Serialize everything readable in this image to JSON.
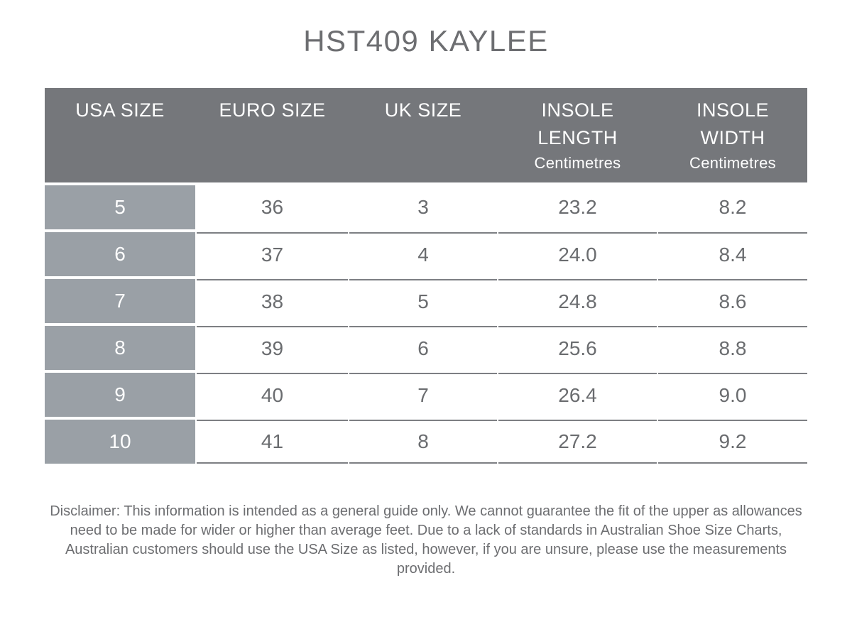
{
  "chart_data": {
    "type": "table",
    "title": "HST409 KAYLEE",
    "columns": [
      {
        "label": "USA SIZE",
        "sublabel": ""
      },
      {
        "label": "EURO SIZE",
        "sublabel": ""
      },
      {
        "label": "UK SIZE",
        "sublabel": ""
      },
      {
        "label": "INSOLE LENGTH",
        "sublabel": "Centimetres"
      },
      {
        "label": "INSOLE WIDTH",
        "sublabel": "Centimetres"
      }
    ],
    "rows": [
      [
        "5",
        "36",
        "3",
        "23.2",
        "8.2"
      ],
      [
        "6",
        "37",
        "4",
        "24.0",
        "8.4"
      ],
      [
        "7",
        "38",
        "5",
        "24.8",
        "8.6"
      ],
      [
        "8",
        "39",
        "6",
        "25.6",
        "8.8"
      ],
      [
        "9",
        "40",
        "7",
        "26.4",
        "9.0"
      ],
      [
        "10",
        "41",
        "8",
        "27.2",
        "9.2"
      ]
    ],
    "layout": {
      "first_column_highlighted": true,
      "grid": "horizontal-lines-only",
      "legend": "none"
    }
  },
  "disclaimer": "Disclaimer: This information is intended as a general guide only. We cannot guarantee the fit of the upper as allowances need to be made for wider or higher than average feet. Due to a lack of standards in Australian Shoe Size Charts, Australian customers should use the USA Size as listed, however, if you are unsure, please use the measurements provided.",
  "colors": {
    "header_bg": "#75777B",
    "header_text": "#FFFFFF",
    "row_label_bg": "#9AA0A6",
    "row_label_text": "#FFFFFF",
    "cell_text": "#6A6C6F",
    "title_text": "#6D6E71",
    "separator_line": "#7D7F83",
    "background": "#FFFFFF"
  }
}
